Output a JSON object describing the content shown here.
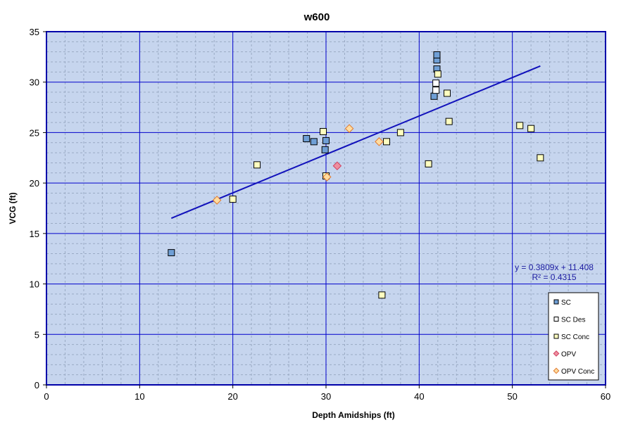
{
  "chart_data": {
    "type": "scatter",
    "title": "w600",
    "xlabel": "Depth Amidships  (ft)",
    "ylabel": "VCG (ft)",
    "xlim": [
      0,
      60
    ],
    "ylim": [
      0,
      35
    ],
    "x_ticks": [
      0,
      10,
      20,
      30,
      40,
      50,
      60
    ],
    "y_ticks": [
      0,
      5,
      10,
      15,
      20,
      25,
      30,
      35
    ],
    "grid": true,
    "legend_position": "bottom-right",
    "colors": {
      "plot_bg": "#c6d5ee",
      "major_grid": "#0000cc",
      "minor_grid": "#9aaac4",
      "trendline": "#1111bb",
      "sc": "#6f9fd6",
      "sc_des": "#ffffff",
      "sc_conc": "#ffffc0",
      "opv": "#ee8fa0",
      "opv_conc": "#ffdca0"
    },
    "series": [
      {
        "name": "SC",
        "marker": "square",
        "x": [
          13.4,
          27.9,
          28.7,
          30.0,
          29.9,
          41.6,
          41.9,
          41.9,
          41.9
        ],
        "y": [
          13.1,
          24.4,
          24.1,
          24.2,
          23.3,
          28.6,
          31.3,
          32.2,
          32.7
        ]
      },
      {
        "name": "SC Des",
        "marker": "square",
        "x": [
          41.8,
          41.8
        ],
        "y": [
          29.9,
          29.2
        ]
      },
      {
        "name": "SC Conc",
        "marker": "square",
        "x": [
          22.6,
          20.0,
          29.7,
          30.0,
          36.0,
          36.5,
          38.0,
          41.0,
          43.0,
          43.2,
          50.8,
          52.0,
          53.0,
          42.0
        ],
        "y": [
          21.8,
          18.4,
          25.1,
          20.7,
          8.9,
          24.1,
          25.0,
          21.9,
          28.9,
          26.1,
          25.7,
          25.4,
          22.5,
          30.8
        ]
      },
      {
        "name": "OPV",
        "marker": "diamond",
        "x": [
          31.2
        ],
        "y": [
          21.7
        ]
      },
      {
        "name": "OPV Conc",
        "marker": "diamond",
        "x": [
          18.3,
          30.1,
          32.5,
          35.7
        ],
        "y": [
          18.3,
          20.6,
          25.4,
          24.1
        ]
      }
    ],
    "trendline": {
      "slope": 0.3809,
      "intercept": 11.408,
      "x_range": [
        13.4,
        53.0
      ],
      "equation_label": "y = 0.3809x + 11.408",
      "r2_label": "R² = 0.4315"
    }
  }
}
